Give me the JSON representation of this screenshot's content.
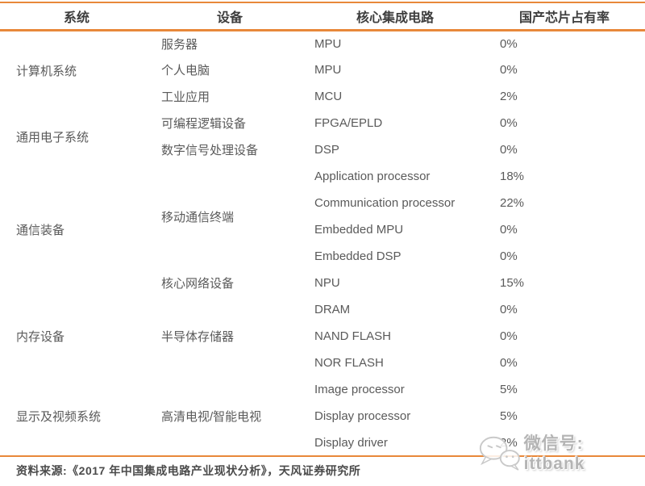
{
  "colors": {
    "accent": "#E8883A"
  },
  "table": {
    "headers": [
      "系统",
      "设备",
      "核心集成电路",
      "国产芯片占有率"
    ],
    "rows": [
      {
        "system": "计算机系统",
        "system_span": 3,
        "device": "服务器",
        "device_span": 1,
        "ic": "MPU",
        "share": "0%"
      },
      {
        "device": "个人电脑",
        "device_span": 1,
        "ic": "MPU",
        "share": "0%"
      },
      {
        "device": "工业应用",
        "device_span": 1,
        "ic": "MCU",
        "share": "2%"
      },
      {
        "system": "通用电子系统",
        "system_span": 2,
        "device": "可编程逻辑设备",
        "device_span": 1,
        "ic": "FPGA/EPLD",
        "share": "0%"
      },
      {
        "device": "数字信号处理设备",
        "device_span": 1,
        "ic": "DSP",
        "share": "0%"
      },
      {
        "system": "通信装备",
        "system_span": 5,
        "device": "移动通信终端",
        "device_span": 4,
        "ic": "Application processor",
        "share": "18%"
      },
      {
        "ic": "Communication processor",
        "share": "22%"
      },
      {
        "ic": "Embedded MPU",
        "share": "0%"
      },
      {
        "ic": "Embedded DSP",
        "share": "0%"
      },
      {
        "device": "核心网络设备",
        "device_span": 1,
        "ic": "NPU",
        "share": "15%"
      },
      {
        "system": "内存设备",
        "system_span": 3,
        "device": "半导体存储器",
        "device_span": 3,
        "ic": "DRAM",
        "share": "0%"
      },
      {
        "ic": "NAND FLASH",
        "share": "0%"
      },
      {
        "ic": "NOR FLASH",
        "share": "0%"
      },
      {
        "system": "显示及视频系统",
        "system_span": 3,
        "device": "高清电视/智能电视",
        "device_span": 3,
        "ic": "Image processor",
        "share": "5%"
      },
      {
        "ic": "Display processor",
        "share": "5%"
      },
      {
        "ic": "Display driver",
        "share": "2%"
      }
    ]
  },
  "footer": {
    "source": "资料来源:《2017 年中国集成电路产业现状分析》，天风证券研究所"
  },
  "watermark": {
    "icon": "wechat-icon",
    "text": "微信号: ittbank"
  }
}
